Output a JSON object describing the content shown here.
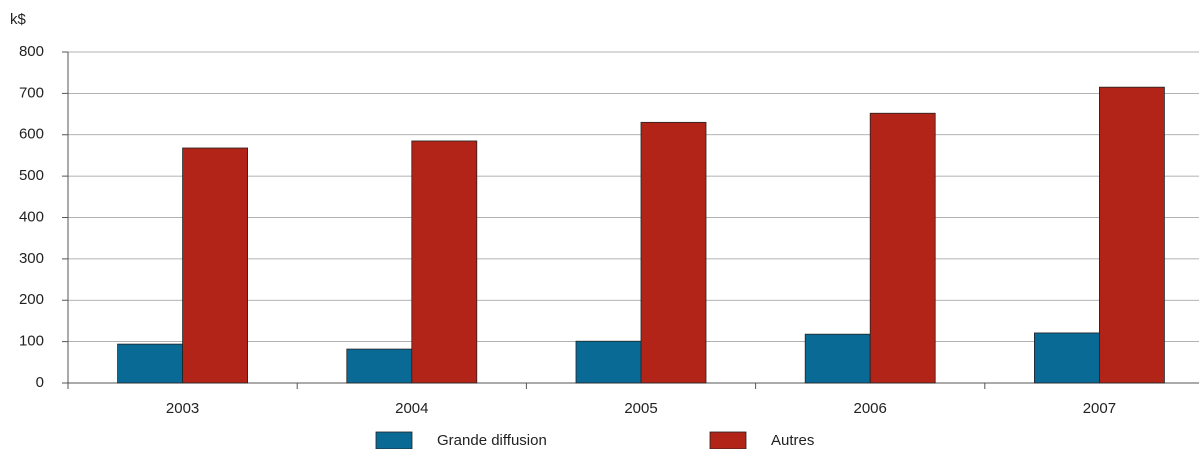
{
  "chart_data": {
    "type": "bar",
    "y_label": "k$",
    "categories": [
      "2003",
      "2004",
      "2005",
      "2006",
      "2007"
    ],
    "series": [
      {
        "name": "Grande diffusion",
        "color": "#0a6a96",
        "values": [
          94,
          82,
          101,
          118,
          121
        ]
      },
      {
        "name": "Autres",
        "color": "#b22418",
        "values": [
          568,
          585,
          630,
          652,
          715
        ]
      }
    ],
    "ylim": [
      0,
      800
    ],
    "yticks": [
      0,
      100,
      200,
      300,
      400,
      500,
      600,
      700,
      800
    ],
    "grid": true
  }
}
